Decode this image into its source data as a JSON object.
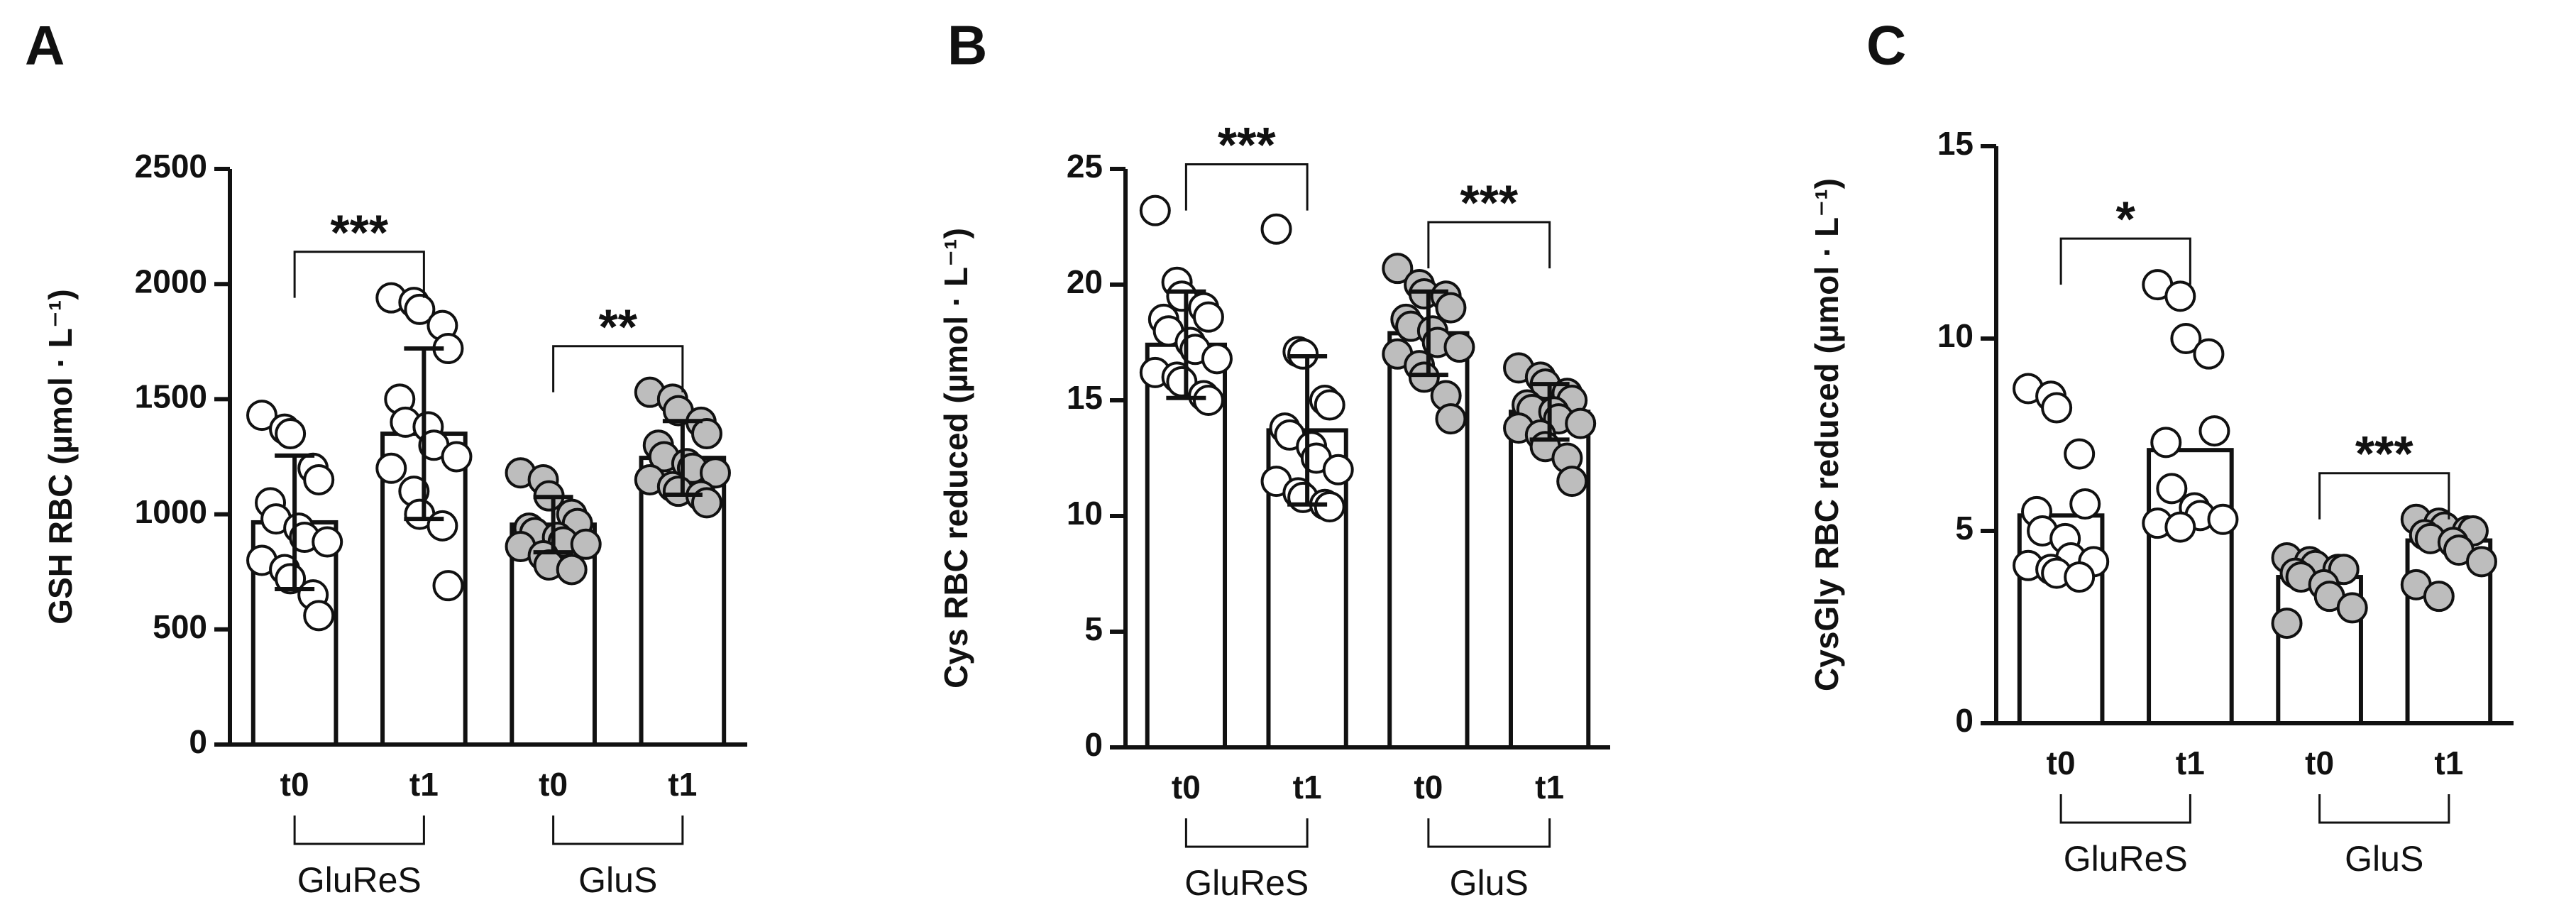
{
  "chart_data": [
    {
      "type": "bar",
      "panel": "A",
      "y_label": "GSH RBC (µmol · L⁻¹)",
      "categories": [
        "t0",
        "t1",
        "t0",
        "t1"
      ],
      "group_labels": [
        "GluReS",
        "GluS"
      ],
      "values": [
        965,
        1350,
        955,
        1245
      ],
      "errors": [
        290,
        370,
        120,
        160
      ],
      "colors": [
        "#ffffff",
        "#ffffff",
        "#bdbdbd",
        "#bdbdbd"
      ],
      "points": [
        [
          1430,
          1370,
          1350,
          1200,
          1150,
          1050,
          980,
          940,
          900,
          880,
          800,
          760,
          720,
          650,
          560
        ],
        [
          1940,
          1920,
          1890,
          1820,
          1720,
          1500,
          1400,
          1380,
          1300,
          1250,
          1200,
          1100,
          1000,
          950,
          690
        ],
        [
          1180,
          1150,
          1080,
          1000,
          960,
          940,
          920,
          900,
          880,
          870,
          860,
          820,
          780,
          760
        ],
        [
          1530,
          1500,
          1450,
          1400,
          1350,
          1300,
          1250,
          1220,
          1200,
          1180,
          1150,
          1120,
          1100,
          1080,
          1050
        ]
      ],
      "annotations": [
        "***",
        "**"
      ],
      "ylim": [
        0,
        2500
      ],
      "yticks": [
        0,
        500,
        1000,
        1500,
        2000,
        2500
      ]
    },
    {
      "type": "bar",
      "panel": "B",
      "y_label": "Cys RBC reduced (µmol · L⁻¹)",
      "categories": [
        "t0",
        "t1",
        "t0",
        "t1"
      ],
      "group_labels": [
        "GluReS",
        "GluS"
      ],
      "values": [
        17.4,
        13.7,
        17.9,
        14.5
      ],
      "errors": [
        2.3,
        3.2,
        1.8,
        1.2
      ],
      "colors": [
        "#ffffff",
        "#ffffff",
        "#bdbdbd",
        "#bdbdbd"
      ],
      "points": [
        [
          23.2,
          20.1,
          19.5,
          19.0,
          18.6,
          18.5,
          18.0,
          17.5,
          17.2,
          16.8,
          16.2,
          16.0,
          15.8,
          15.2,
          15.0
        ],
        [
          22.4,
          17.1,
          17.0,
          15.0,
          14.8,
          13.8,
          13.5,
          13.0,
          12.5,
          12.0,
          11.5,
          11.0,
          10.8,
          10.5,
          10.4
        ],
        [
          20.7,
          20.0,
          19.6,
          19.5,
          19.0,
          18.5,
          18.2,
          18.0,
          17.5,
          17.3,
          17.0,
          16.5,
          16.0,
          15.2,
          14.2
        ],
        [
          16.4,
          16.0,
          15.7,
          15.3,
          15.0,
          14.8,
          14.6,
          14.5,
          14.2,
          14.0,
          13.8,
          13.5,
          13.0,
          12.5,
          11.5
        ]
      ],
      "annotations": [
        "***",
        "***"
      ],
      "ylim": [
        0,
        25
      ],
      "yticks": [
        0,
        5,
        10,
        15,
        20,
        25
      ]
    },
    {
      "type": "bar",
      "panel": "C",
      "y_label": "CysGly RBC reduced (µmol · L⁻¹)",
      "categories": [
        "t0",
        "t1",
        "t0",
        "t1"
      ],
      "group_labels": [
        "GluReS",
        "GluS"
      ],
      "values": [
        5.4,
        7.1,
        3.8,
        4.75
      ],
      "colors": [
        "#ffffff",
        "#ffffff",
        "#bdbdbd",
        "#bdbdbd"
      ],
      "points": [
        [
          8.7,
          8.5,
          8.2,
          7.0,
          5.7,
          5.5,
          5.0,
          4.8,
          4.3,
          4.2,
          4.1,
          4.0,
          3.9,
          3.8
        ],
        [
          11.4,
          11.1,
          10.0,
          9.6,
          7.6,
          7.3,
          6.1,
          5.6,
          5.4,
          5.3,
          5.2,
          5.1
        ],
        [
          4.3,
          4.2,
          4.1,
          4.0,
          4.0,
          3.9,
          3.8,
          3.6,
          3.3,
          3.0,
          2.6
        ],
        [
          5.3,
          5.2,
          5.1,
          5.0,
          5.0,
          4.9,
          4.8,
          4.7,
          4.5,
          4.2,
          3.6,
          3.3
        ]
      ],
      "annotations": [
        "*",
        "***"
      ],
      "ylim": [
        0,
        15
      ],
      "yticks": [
        0,
        5,
        10,
        15
      ]
    }
  ]
}
